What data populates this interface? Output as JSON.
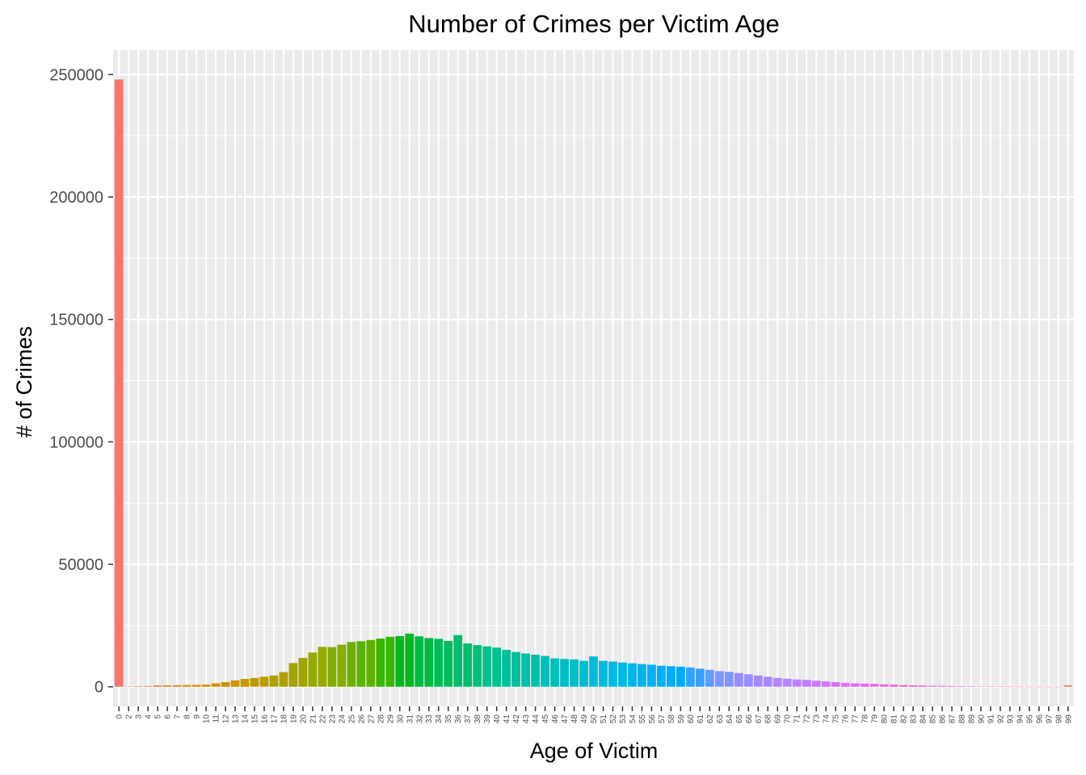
{
  "chart_data": {
    "type": "bar",
    "title": "Number of Crimes per Victim Age",
    "xlabel": "Age of Victim",
    "ylabel": "# of Crimes",
    "ylim": [
      -8000,
      260000
    ],
    "yticks": [
      0,
      50000,
      100000,
      150000,
      200000,
      250000
    ],
    "yticklabels": [
      "0",
      "50000",
      "100000",
      "150000",
      "200000",
      "250000"
    ],
    "grid": true,
    "legend": "none",
    "categories": [
      "0",
      "2",
      "3",
      "4",
      "5",
      "6",
      "7",
      "8",
      "9",
      "10",
      "11",
      "12",
      "13",
      "14",
      "15",
      "16",
      "17",
      "18",
      "19",
      "20",
      "21",
      "22",
      "23",
      "24",
      "25",
      "26",
      "27",
      "28",
      "29",
      "30",
      "31",
      "32",
      "33",
      "34",
      "35",
      "36",
      "37",
      "38",
      "39",
      "40",
      "41",
      "42",
      "43",
      "44",
      "45",
      "46",
      "47",
      "48",
      "49",
      "50",
      "51",
      "52",
      "53",
      "54",
      "55",
      "56",
      "57",
      "58",
      "59",
      "60",
      "61",
      "62",
      "63",
      "64",
      "65",
      "66",
      "67",
      "68",
      "69",
      "70",
      "71",
      "72",
      "73",
      "74",
      "75",
      "76",
      "77",
      "78",
      "79",
      "80",
      "81",
      "82",
      "83",
      "84",
      "85",
      "86",
      "87",
      "88",
      "89",
      "90",
      "91",
      "92",
      "93",
      "94",
      "95",
      "96",
      "97",
      "98",
      "99"
    ],
    "values": [
      248000,
      150,
      250,
      300,
      550,
      600,
      650,
      700,
      750,
      900,
      1400,
      1900,
      2600,
      3200,
      3600,
      4100,
      4600,
      6000,
      9700,
      11800,
      14000,
      16300,
      16200,
      17200,
      18300,
      18600,
      19100,
      19700,
      20400,
      20700,
      21700,
      20600,
      19900,
      19600,
      18700,
      21100,
      17700,
      17000,
      16500,
      16000,
      15100,
      14200,
      13600,
      13100,
      12600,
      11600,
      11400,
      11200,
      10600,
      12400,
      10600,
      10300,
      9900,
      9600,
      9300,
      9000,
      8600,
      8400,
      8200,
      7900,
      7400,
      6900,
      6400,
      6100,
      5600,
      5100,
      4600,
      4100,
      3600,
      3300,
      3000,
      2800,
      2500,
      2200,
      1900,
      1600,
      1400,
      1300,
      1200,
      1000,
      900,
      700,
      600,
      500,
      400,
      350,
      300,
      250,
      200,
      150,
      100,
      60,
      40,
      30,
      20,
      15,
      10,
      5,
      600
    ],
    "colors": [
      "#F8766D",
      "#F37B59",
      "#ED8141",
      "#E7861B",
      "#E08B00",
      "#D89000",
      "#CF9400",
      "#C59900",
      "#BB9D00",
      "#B0A100",
      "#A3A500",
      "#95A900",
      "#85AD00",
      "#72B000",
      "#5BB300",
      "#39B600",
      "#00B81F",
      "#00BA42",
      "#00BC59",
      "#00BD6D",
      "#00BF7D",
      "#00C08D",
      "#00C19C",
      "#00C1AA",
      "#00C0B7",
      "#00BFC4",
      "#00BDD0",
      "#00BBDB",
      "#00B8E5",
      "#00B4EF",
      "#00B0F6",
      "#00ABFD",
      "#35A2FF",
      "#619CFF",
      "#7F96FF",
      "#9590FF",
      "#A58AFF",
      "#B385FF",
      "#C17FFF",
      "#CF78FF",
      "#DB72FB",
      "#E36EF6",
      "#EA6AF1",
      "#F166E8",
      "#F763E0",
      "#FB61D7",
      "#FD61CB",
      "#FF61C3",
      "#FF62B8",
      "#FF64B0",
      "#FF67A4",
      "#FD6C99",
      "#FA6F8E",
      "#F8766D"
    ]
  }
}
